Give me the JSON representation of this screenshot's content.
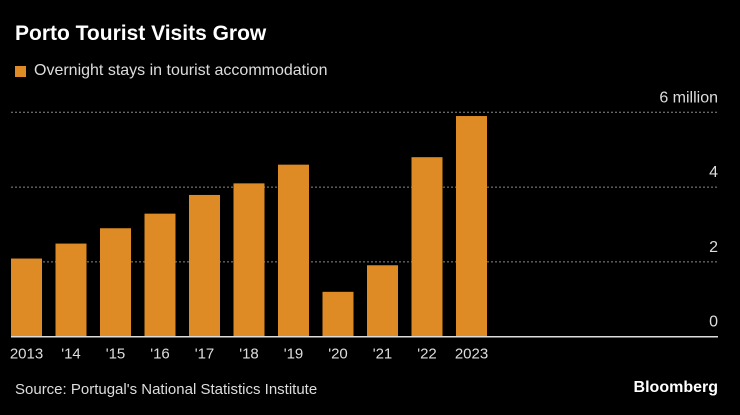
{
  "chart_data": {
    "type": "bar",
    "title": "Porto Tourist Visits Grow",
    "legend": [
      "Overnight stays in tourist accommodation"
    ],
    "categories": [
      "2013",
      "'14",
      "'15",
      "'16",
      "'17",
      "'18",
      "'19",
      "'20",
      "'21",
      "'22",
      "2023"
    ],
    "series": [
      {
        "name": "Overnight stays in tourist accommodation",
        "values": [
          2.09,
          2.49,
          2.9,
          3.29,
          3.79,
          4.1,
          4.6,
          1.2,
          1.91,
          4.8,
          5.9
        ]
      }
    ],
    "yticks": [
      "0",
      "2",
      "4",
      "6 million"
    ],
    "ytick_values": [
      0,
      2,
      4,
      6
    ],
    "ylim": [
      0,
      6
    ],
    "grid": true,
    "yaxis_position": "right",
    "legend_placement": "top-left",
    "bar_color": "#de8a25",
    "source": "Source: Portugal's National Statistics Institute",
    "brand": "Bloomberg"
  }
}
